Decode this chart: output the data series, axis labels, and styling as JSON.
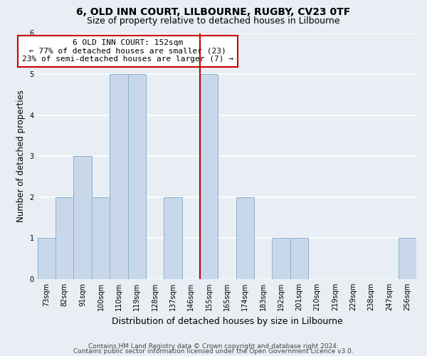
{
  "title1": "6, OLD INN COURT, LILBOURNE, RUGBY, CV23 0TF",
  "title2": "Size of property relative to detached houses in Lilbourne",
  "xlabel": "Distribution of detached houses by size in Lilbourne",
  "ylabel": "Number of detached properties",
  "bar_labels": [
    "73sqm",
    "82sqm",
    "91sqm",
    "100sqm",
    "110sqm",
    "119sqm",
    "128sqm",
    "137sqm",
    "146sqm",
    "155sqm",
    "165sqm",
    "174sqm",
    "183sqm",
    "192sqm",
    "201sqm",
    "210sqm",
    "219sqm",
    "229sqm",
    "238sqm",
    "247sqm",
    "256sqm"
  ],
  "bar_values": [
    1,
    2,
    3,
    2,
    5,
    5,
    0,
    2,
    0,
    5,
    0,
    2,
    0,
    1,
    1,
    0,
    0,
    0,
    0,
    0,
    1
  ],
  "bar_color": "#c8d8ea",
  "bar_edgecolor": "#8ab0cc",
  "reference_line_x": 8.5,
  "reference_line_color": "#bb0000",
  "annotation_text": "6 OLD INN COURT: 152sqm\n← 77% of detached houses are smaller (23)\n23% of semi-detached houses are larger (7) →",
  "annotation_box_edgecolor": "#cc0000",
  "annotation_box_facecolor": "#ffffff",
  "footer1": "Contains HM Land Registry data © Crown copyright and database right 2024.",
  "footer2": "Contains public sector information licensed under the Open Government Licence v3.0.",
  "ylim": [
    0,
    6
  ],
  "yticks": [
    0,
    1,
    2,
    3,
    4,
    5,
    6
  ],
  "background_color": "#e8eef4",
  "plot_background": "#e8eef4",
  "grid_color": "#ffffff",
  "title1_fontsize": 10,
  "title2_fontsize": 9,
  "xlabel_fontsize": 9,
  "ylabel_fontsize": 8.5,
  "tick_fontsize": 7,
  "footer_fontsize": 6.5,
  "annotation_fontsize": 8
}
